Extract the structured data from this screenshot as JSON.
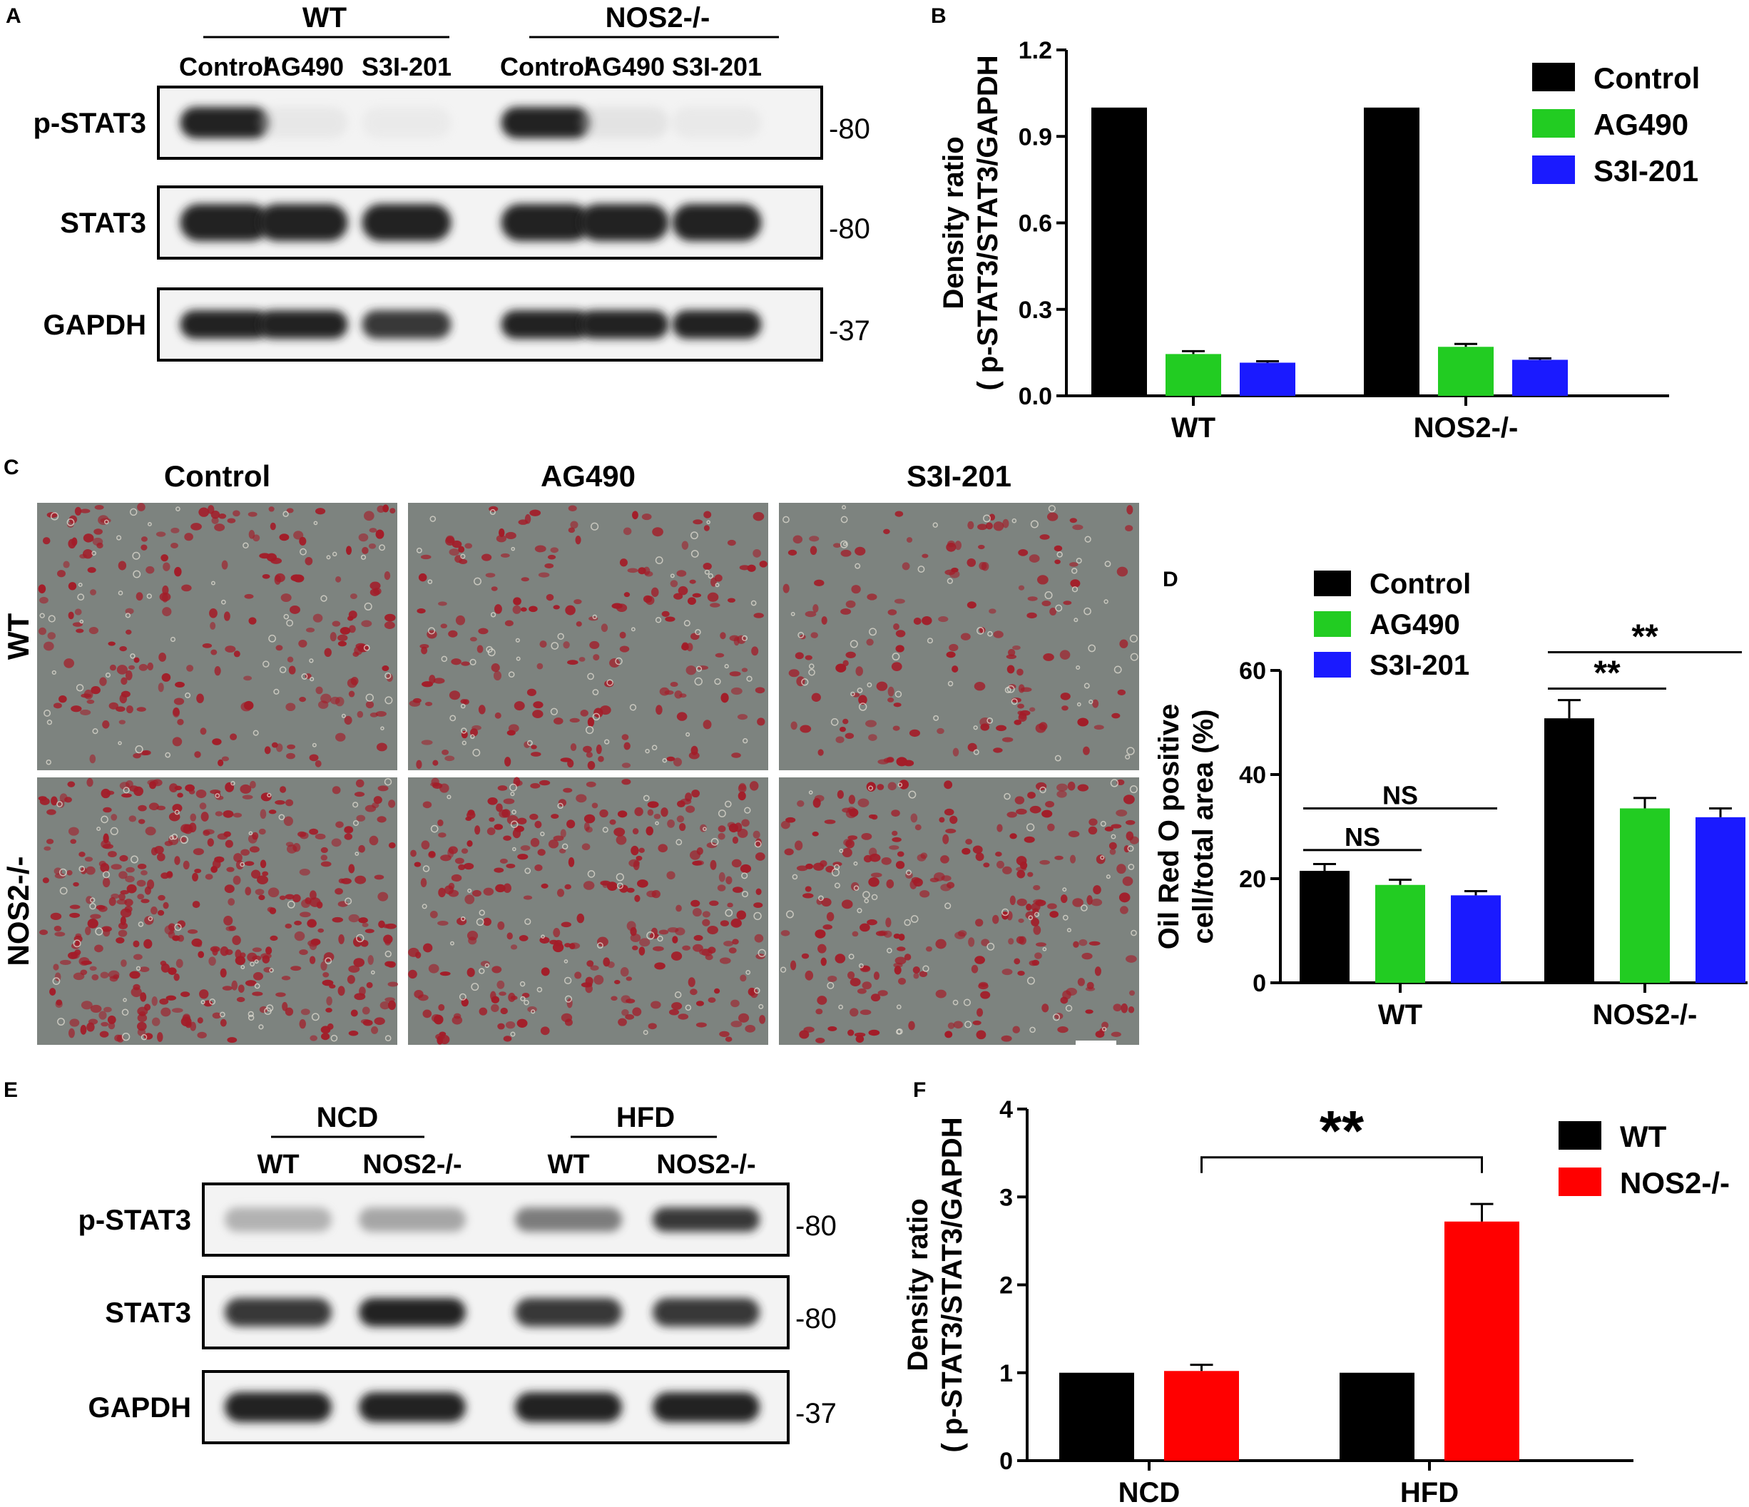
{
  "colors": {
    "control": "#000000",
    "ag490": "#22cc22",
    "s3i": "#1a1aff",
    "wt": "#000000",
    "nos2": "#ff0000",
    "micrograph_bg": "#7d837f",
    "stain": "#a31c28"
  },
  "panel_a": {
    "label": "A",
    "groups": [
      "WT",
      "NOS2-/-"
    ],
    "lanes": [
      "Control",
      "AG490",
      "S3I-201",
      "Control",
      "AG490",
      "S3I-201"
    ],
    "blots": [
      {
        "name": "p-STAT3",
        "marker": "-80",
        "intensity": [
          1.0,
          0.12,
          0.08,
          1.0,
          0.18,
          0.1
        ]
      },
      {
        "name": "STAT3",
        "marker": "-80",
        "intensity": [
          1.0,
          1.0,
          1.0,
          1.0,
          1.0,
          1.0
        ]
      },
      {
        "name": "GAPDH",
        "marker": "-37",
        "intensity": [
          1.0,
          1.0,
          0.95,
          1.0,
          1.0,
          1.0
        ]
      }
    ]
  },
  "panel_e": {
    "label": "E",
    "groups": [
      "NCD",
      "HFD"
    ],
    "lanes": [
      "WT",
      "NOS2-/-",
      "WT",
      "NOS2-/-"
    ],
    "blots": [
      {
        "name": "p-STAT3",
        "marker": "-80",
        "intensity": [
          0.55,
          0.6,
          0.75,
          0.95
        ]
      },
      {
        "name": "STAT3",
        "marker": "-80",
        "intensity": [
          0.95,
          1.0,
          0.95,
          0.95
        ]
      },
      {
        "name": "GAPDH",
        "marker": "-37",
        "intensity": [
          1.0,
          1.0,
          1.0,
          1.0
        ]
      }
    ]
  },
  "panel_c": {
    "label": "C",
    "columns": [
      "Control",
      "AG490",
      "S3I-201"
    ],
    "rows": [
      "WT",
      "NOS2-/-"
    ],
    "stain_density": [
      [
        0.5,
        0.45,
        0.35
      ],
      [
        0.95,
        0.7,
        0.6
      ]
    ]
  },
  "chart_data": [
    {
      "panel": "B",
      "type": "bar",
      "categories": [
        "WT",
        "NOS2-/-"
      ],
      "series": [
        {
          "name": "Control",
          "values": [
            1.0,
            1.0
          ],
          "errors": [
            0,
            0
          ]
        },
        {
          "name": "AG490",
          "values": [
            0.145,
            0.17
          ],
          "errors": [
            0.01,
            0.01
          ]
        },
        {
          "name": "S3I-201",
          "values": [
            0.115,
            0.125
          ],
          "errors": [
            0.005,
            0.005
          ]
        }
      ],
      "ylabel_line1": "Density ratio",
      "ylabel_line2": "( p-STAT3/STAT3/GAPDH",
      "ylim": [
        0,
        1.2
      ],
      "yticks": [
        "0.0",
        "0.3",
        "0.6",
        "0.9",
        "1.2"
      ],
      "legend": "top-right",
      "annotations": []
    },
    {
      "panel": "D",
      "type": "bar",
      "categories": [
        "WT",
        "NOS2-/-"
      ],
      "series": [
        {
          "name": "Control",
          "values": [
            21.5,
            50.8
          ],
          "errors": [
            1.3,
            3.5
          ]
        },
        {
          "name": "AG490",
          "values": [
            18.8,
            33.5
          ],
          "errors": [
            1.0,
            2.0
          ]
        },
        {
          "name": "S3I-201",
          "values": [
            16.8,
            31.8
          ],
          "errors": [
            0.8,
            1.7
          ]
        }
      ],
      "ylabel_line1": "Oil Red O positive",
      "ylabel_line2": "cell/total area (%)",
      "ylim": [
        0,
        60
      ],
      "yticks": [
        "0",
        "20",
        "40",
        "60"
      ],
      "legend": "top-left",
      "annotations": [
        {
          "text": "NS",
          "cat": 0,
          "from": 0,
          "to": 1,
          "y": 25.5
        },
        {
          "text": "NS",
          "cat": 0,
          "from": 0,
          "to": 2,
          "y": 33.5
        },
        {
          "text": "**",
          "cat": 1,
          "from": 0,
          "to": 1,
          "y": 56.5
        },
        {
          "text": "**",
          "cat": 1,
          "from": 0,
          "to": 2,
          "y": 63.5
        }
      ]
    },
    {
      "panel": "F",
      "type": "bar",
      "categories": [
        "NCD",
        "HFD"
      ],
      "series": [
        {
          "name": "WT",
          "values": [
            1.0,
            1.0
          ],
          "errors": [
            0,
            0
          ]
        },
        {
          "name": "NOS2-/-",
          "values": [
            1.02,
            2.72
          ],
          "errors": [
            0.07,
            0.2
          ]
        }
      ],
      "ylabel_line1": "Density ratio",
      "ylabel_line2": "( p-STAT3/STAT3/GAPDH",
      "ylim": [
        0,
        4
      ],
      "yticks": [
        "0",
        "1",
        "2",
        "3",
        "4"
      ],
      "legend": "top-right",
      "annotations": [
        {
          "text": "**",
          "cat": 0,
          "from": 1,
          "to": 1,
          "cat_to": 1,
          "y": 3.45
        }
      ]
    }
  ]
}
